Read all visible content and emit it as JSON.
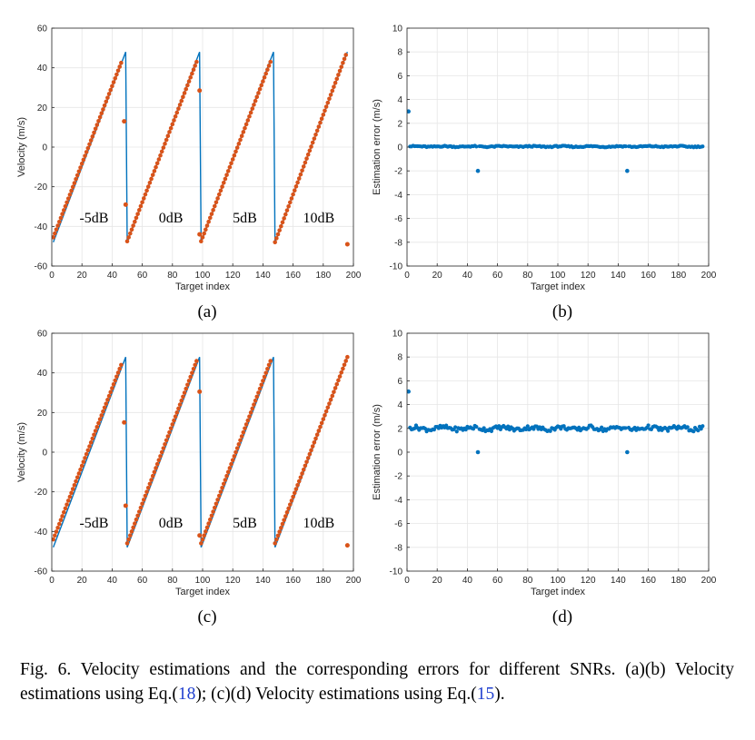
{
  "charts": [
    {
      "id": "a",
      "panel_label": "(a)",
      "type": "line+scatter",
      "title": "",
      "xlabel": "Target index",
      "ylabel": "Velocity (m/s)",
      "xlim": [
        0,
        200
      ],
      "ylim": [
        -60,
        60
      ],
      "xticks": [
        0,
        20,
        40,
        60,
        80,
        100,
        120,
        140,
        160,
        180,
        200
      ],
      "yticks": [
        -60,
        -40,
        -20,
        0,
        20,
        40,
        60
      ],
      "grid": true,
      "annotations": [
        {
          "text": "-5dB",
          "x": 28,
          "y": -38
        },
        {
          "text": "0dB",
          "x": 79,
          "y": -38
        },
        {
          "text": "5dB",
          "x": 128,
          "y": -38
        },
        {
          "text": "10dB",
          "x": 177,
          "y": -38
        }
      ],
      "true_segments": [
        {
          "x": [
            1,
            49
          ],
          "y": [
            -48,
            48
          ]
        },
        {
          "x": [
            50,
            98
          ],
          "y": [
            -48,
            48
          ]
        },
        {
          "x": [
            99,
            147
          ],
          "y": [
            -48,
            48
          ]
        },
        {
          "x": [
            148,
            196
          ],
          "y": [
            -48,
            48
          ]
        }
      ],
      "estimate_segments": [
        {
          "x": [
            1,
            46
          ],
          "y": [
            -45.5,
            42.5
          ]
        },
        {
          "x": [
            50,
            96
          ],
          "y": [
            -47.5,
            43
          ]
        },
        {
          "x": [
            99,
            145
          ],
          "y": [
            -47.5,
            43
          ]
        },
        {
          "x": [
            148,
            195
          ],
          "y": [
            -48,
            46.5
          ]
        }
      ],
      "outliers": [
        {
          "x": 48,
          "y": 13
        },
        {
          "x": 49,
          "y": -29
        },
        {
          "x": 98,
          "y": 28.5
        },
        {
          "x": 98,
          "y": -44
        },
        {
          "x": 196,
          "y": -49
        }
      ]
    },
    {
      "id": "b",
      "panel_label": "(b)",
      "type": "scatter",
      "title": "",
      "xlabel": "Target index",
      "ylabel": "Estimation error (m/s)",
      "xlim": [
        0,
        200
      ],
      "ylim": [
        -10,
        10
      ],
      "xticks": [
        0,
        20,
        40,
        60,
        80,
        100,
        120,
        140,
        160,
        180,
        200
      ],
      "yticks": [
        -10,
        -8,
        -6,
        -4,
        -2,
        0,
        2,
        4,
        6,
        8,
        10
      ],
      "grid": true,
      "baseline": {
        "x_range": [
          1,
          196
        ],
        "y": 0.05,
        "jitter": 0.05
      },
      "gap_indices": [
        47,
        146
      ],
      "outliers": [
        {
          "x": 1,
          "y": 3
        },
        {
          "x": 47,
          "y": -2
        },
        {
          "x": 146,
          "y": -2
        }
      ]
    },
    {
      "id": "c",
      "panel_label": "(c)",
      "type": "line+scatter",
      "title": "",
      "xlabel": "Target index",
      "ylabel": "Velocity (m/s)",
      "xlim": [
        0,
        200
      ],
      "ylim": [
        -60,
        60
      ],
      "xticks": [
        0,
        20,
        40,
        60,
        80,
        100,
        120,
        140,
        160,
        180,
        200
      ],
      "yticks": [
        -60,
        -40,
        -20,
        0,
        20,
        40,
        60
      ],
      "grid": true,
      "annotations": [
        {
          "text": "-5dB",
          "x": 28,
          "y": -38
        },
        {
          "text": "0dB",
          "x": 79,
          "y": -38
        },
        {
          "text": "5dB",
          "x": 128,
          "y": -38
        },
        {
          "text": "10dB",
          "x": 177,
          "y": -38
        }
      ],
      "true_segments": [
        {
          "x": [
            1,
            49
          ],
          "y": [
            -48,
            48
          ]
        },
        {
          "x": [
            50,
            98
          ],
          "y": [
            -48,
            48
          ]
        },
        {
          "x": [
            99,
            147
          ],
          "y": [
            -48,
            48
          ]
        },
        {
          "x": [
            148,
            196
          ],
          "y": [
            -48,
            48
          ]
        }
      ],
      "estimate_segments": [
        {
          "x": [
            1,
            46
          ],
          "y": [
            -44,
            44
          ]
        },
        {
          "x": [
            50,
            96
          ],
          "y": [
            -46,
            46
          ]
        },
        {
          "x": [
            99,
            145
          ],
          "y": [
            -46,
            46
          ]
        },
        {
          "x": [
            148,
            196
          ],
          "y": [
            -46,
            48
          ]
        }
      ],
      "outliers": [
        {
          "x": 48,
          "y": 15
        },
        {
          "x": 49,
          "y": -27
        },
        {
          "x": 98,
          "y": 30.5
        },
        {
          "x": 98,
          "y": -42
        },
        {
          "x": 196,
          "y": -47
        }
      ]
    },
    {
      "id": "d",
      "panel_label": "(d)",
      "type": "scatter",
      "title": "",
      "xlabel": "Target index",
      "ylabel": "Estimation error (m/s)",
      "xlim": [
        0,
        200
      ],
      "ylim": [
        -10,
        10
      ],
      "xticks": [
        0,
        20,
        40,
        60,
        80,
        100,
        120,
        140,
        160,
        180,
        200
      ],
      "yticks": [
        -10,
        -8,
        -6,
        -4,
        -2,
        0,
        2,
        4,
        6,
        8,
        10
      ],
      "grid": true,
      "baseline": {
        "x_range": [
          1,
          196
        ],
        "y": 2.0,
        "jitter": 0.18
      },
      "gap_indices": [
        47,
        146
      ],
      "outliers": [
        {
          "x": 1,
          "y": 5.1
        },
        {
          "x": 47,
          "y": 0
        },
        {
          "x": 146,
          "y": 0
        }
      ]
    }
  ],
  "colors": {
    "true_line": "#0072BD",
    "estimate": "#D95319",
    "error_points": "#0072BD",
    "grid": "#e6e6e6",
    "axis": "#262626"
  },
  "caption": {
    "lead": "Fig. 6.   Velocity estimations and the corresponding errors for different SNRs. (a)(b) Velocity estimations using Eq.(",
    "ref1": "18",
    "mid": "); (c)(d) Velocity estimations using Eq.(",
    "ref2": "15",
    "tail": ")."
  }
}
